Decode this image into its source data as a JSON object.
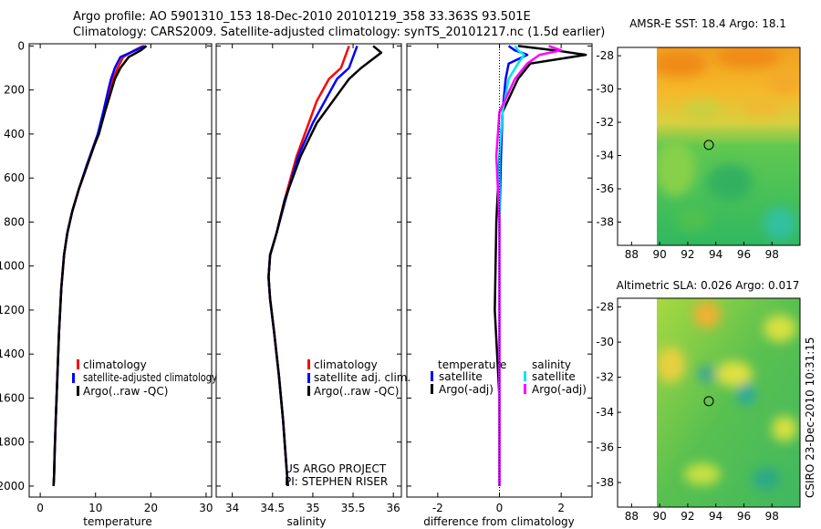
{
  "header": {
    "line1": "Argo profile: AO 5901310_153 18-Dec-2010 20101219_358 33.363S 93.501E",
    "line2": "Climatology: CARS2009. Satellite-adjusted climatology: synTS_20101217.nc (1.5d earlier)"
  },
  "colors": {
    "climatology": "#ff0000",
    "satellite": "#0000ff",
    "argo": "#000000",
    "satellite_sal": "#00e5ee",
    "argo_sal": "#ff00ff"
  },
  "chart_data": [
    {
      "type": "line",
      "name": "temperature-profile",
      "xlabel": "temperature",
      "xlim": [
        -2,
        31
      ],
      "xticks": [
        0,
        10,
        20,
        30
      ],
      "ylim": [
        2050,
        -10
      ],
      "yticks": [
        0,
        200,
        400,
        600,
        800,
        1000,
        1200,
        1400,
        1600,
        1800,
        2000
      ],
      "legend": [
        "climatology",
        "satellite-adjusted climatology",
        "Argo(..raw -QC)"
      ],
      "series": [
        {
          "name": "climatology",
          "color_key": "climatology",
          "x": [
            18.6,
            17.0,
            15.0,
            14.0,
            13.2,
            12.6,
            11.6,
            10.5,
            9.8,
            8.4,
            7.0,
            5.8,
            4.9,
            4.3,
            3.8,
            3.4,
            3.1,
            2.8,
            2.6,
            2.5,
            2.4
          ],
          "y": [
            0,
            20,
            50,
            100,
            150,
            200,
            300,
            400,
            450,
            550,
            650,
            750,
            850,
            950,
            1100,
            1300,
            1500,
            1700,
            1850,
            1950,
            2000
          ]
        },
        {
          "name": "satellite-adjusted climatology",
          "color_key": "satellite",
          "x": [
            18.9,
            17.2,
            14.5,
            13.5,
            12.8,
            12.3,
            11.4,
            10.4,
            9.7,
            8.3,
            7.0,
            5.8,
            4.9,
            4.3,
            3.8,
            3.4,
            3.1,
            2.8,
            2.6,
            2.5,
            2.4
          ],
          "y": [
            0,
            20,
            50,
            100,
            150,
            200,
            300,
            400,
            450,
            550,
            650,
            750,
            850,
            950,
            1100,
            1300,
            1500,
            1700,
            1850,
            1950,
            2000
          ]
        },
        {
          "name": "Argo(..raw -QC)",
          "color_key": "argo",
          "x": [
            19.2,
            18.2,
            16.0,
            14.5,
            13.5,
            12.9,
            11.7,
            10.6,
            9.8,
            8.4,
            7.0,
            5.8,
            4.9,
            4.3,
            3.8,
            3.4,
            3.1,
            2.8,
            2.6,
            2.5,
            2.4
          ],
          "y": [
            0,
            20,
            50,
            100,
            150,
            200,
            300,
            400,
            450,
            550,
            650,
            750,
            850,
            950,
            1100,
            1300,
            1500,
            1700,
            1850,
            1950,
            2000
          ]
        }
      ]
    },
    {
      "type": "line",
      "name": "salinity-profile",
      "xlabel": "salinity",
      "xlim": [
        33.8,
        36.1
      ],
      "xticks": [
        34,
        34.5,
        35,
        35.5,
        36
      ],
      "ylim": [
        2050,
        -10
      ],
      "legend": [
        "climatology",
        "satellite adj. clim.",
        "Argo(..raw -QC)"
      ],
      "annotations": [
        "US ARGO PROJECT",
        "PI: STEPHEN RISER"
      ],
      "series": [
        {
          "name": "climatology",
          "color_key": "climatology",
          "x": [
            35.45,
            35.4,
            35.35,
            35.2,
            35.05,
            34.95,
            34.8,
            34.65,
            34.55,
            34.47,
            34.45,
            34.47,
            34.52,
            34.58,
            34.63,
            34.67,
            34.69
          ],
          "y": [
            0,
            50,
            100,
            150,
            250,
            350,
            500,
            700,
            850,
            950,
            1050,
            1150,
            1300,
            1500,
            1700,
            1900,
            2000
          ]
        },
        {
          "name": "satellite adj. clim.",
          "color_key": "satellite",
          "x": [
            35.55,
            35.5,
            35.45,
            35.3,
            35.15,
            35.0,
            34.82,
            34.66,
            34.55,
            34.47,
            34.45,
            34.47,
            34.52,
            34.58,
            34.63,
            34.67,
            34.69
          ],
          "y": [
            0,
            50,
            100,
            150,
            250,
            350,
            500,
            700,
            850,
            950,
            1050,
            1150,
            1300,
            1500,
            1700,
            1900,
            2000
          ]
        },
        {
          "name": "Argo(..raw -QC)",
          "color_key": "argo",
          "x": [
            35.75,
            35.85,
            35.6,
            35.45,
            35.25,
            35.05,
            34.85,
            34.65,
            34.55,
            34.47,
            34.45,
            34.47,
            34.52,
            34.58,
            34.63,
            34.67,
            34.69
          ],
          "y": [
            0,
            30,
            100,
            150,
            250,
            350,
            500,
            700,
            850,
            950,
            1050,
            1150,
            1300,
            1500,
            1700,
            1900,
            2000
          ]
        }
      ]
    },
    {
      "type": "line",
      "name": "difference-profile",
      "xlabel": "difference from climatology",
      "xlim": [
        -3,
        3
      ],
      "xticks": [
        -2,
        0,
        2
      ],
      "ylim": [
        2050,
        -10
      ],
      "legend_groups": {
        "temperature": [
          "satellite",
          "Argo(-adj)"
        ],
        "salinity": [
          "satellite",
          "Argo(-adj)"
        ]
      },
      "series": [
        {
          "name": "temperature satellite",
          "color_key": "satellite",
          "x": [
            0.3,
            0.5,
            0.9,
            0.3,
            0.2,
            0.1,
            0.05,
            0.0,
            0.0,
            0.0,
            0.0
          ],
          "y": [
            0,
            20,
            40,
            80,
            150,
            300,
            500,
            800,
            1200,
            1600,
            2000
          ]
        },
        {
          "name": "temperature Argo(-adj)",
          "color_key": "argo",
          "x": [
            0.6,
            1.8,
            2.8,
            1.0,
            0.6,
            0.1,
            0.0,
            -0.1,
            -0.15,
            0.0,
            0.0
          ],
          "y": [
            0,
            20,
            40,
            80,
            150,
            300,
            500,
            800,
            1200,
            1600,
            2000
          ]
        },
        {
          "name": "salinity satellite",
          "color_key": "satellite_sal",
          "x": [
            0.5,
            0.6,
            0.8,
            0.6,
            0.3,
            0.1,
            0.0,
            0.0,
            0.0,
            0.0,
            0.0
          ],
          "y": [
            0,
            20,
            40,
            80,
            150,
            300,
            500,
            800,
            1200,
            1600,
            2000
          ]
        },
        {
          "name": "salinity Argo(-adj)",
          "color_key": "argo_sal",
          "x": [
            1.6,
            2.0,
            1.3,
            0.9,
            0.5,
            0.0,
            -0.1,
            0.0,
            0.0,
            0.0,
            0.0
          ],
          "y": [
            0,
            20,
            40,
            80,
            150,
            300,
            500,
            800,
            1200,
            1600,
            2000
          ]
        }
      ]
    },
    {
      "type": "heatmap",
      "name": "amsr-sst-map",
      "title": "AMSR-E SST: 18.4 Argo: 18.1",
      "xlim": [
        87,
        100
      ],
      "ylim": [
        -39.4,
        -27.5
      ],
      "xticks": [
        88,
        90,
        92,
        94,
        96,
        98
      ],
      "yticks": [
        -28,
        -30,
        -32,
        -34,
        -36,
        -38
      ],
      "data_extent_x": [
        90,
        100
      ],
      "marker": {
        "lon": 93.5,
        "lat": -33.363
      }
    },
    {
      "type": "heatmap",
      "name": "altimetric-sla-map",
      "title": "Altimetric SLA: 0.026 Argo: 0.017",
      "xlim": [
        87,
        100
      ],
      "ylim": [
        -39.4,
        -27.5
      ],
      "xticks": [
        88,
        90,
        92,
        94,
        96,
        98
      ],
      "yticks": [
        -28,
        -30,
        -32,
        -34,
        -36,
        -38
      ],
      "data_extent_x": [
        90,
        100
      ],
      "marker": {
        "lon": 93.5,
        "lat": -33.363
      }
    }
  ],
  "footer": {
    "credit": "CSIRO 23-Dec-2010 10:31:15"
  }
}
